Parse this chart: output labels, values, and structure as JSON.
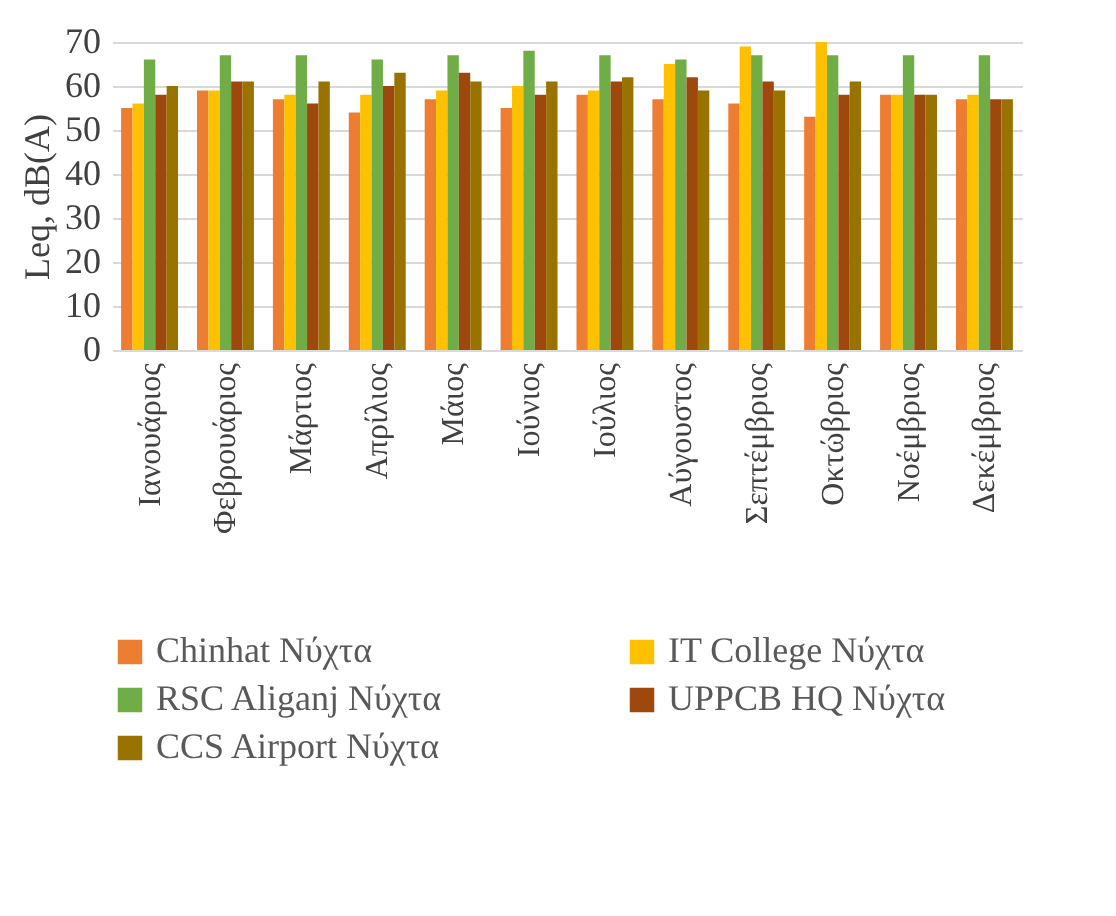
{
  "chart_data": {
    "type": "bar",
    "ylabel": "Leq, dB(A)",
    "categories": [
      "Ιανουάριος",
      "Φεβρουάριος",
      "Μάρτιος",
      "Απρίλιος",
      "Μάιος",
      "Ιούνιος",
      "Ιούλιος",
      "Αύγουστος",
      "Σεπτέμβριος",
      "Οκτώβριος",
      "Νοέμβριος",
      "Δεκέμβριος"
    ],
    "series": [
      {
        "name": "Chinhat Νύχτα",
        "color": "#ed7d31",
        "values": [
          55,
          59,
          57,
          54,
          57,
          55,
          58,
          57,
          56,
          53,
          58,
          57
        ]
      },
      {
        "name": "IT College Νύχτα",
        "color": "#ffc000",
        "values": [
          56,
          59,
          58,
          58,
          59,
          60,
          59,
          65,
          69,
          70,
          58,
          58
        ]
      },
      {
        "name": "RSC Aliganj Νύχτα",
        "color": "#70ad47",
        "values": [
          66,
          67,
          67,
          66,
          67,
          68,
          67,
          66,
          67,
          67,
          67,
          67
        ]
      },
      {
        "name": "UPPCB HQ Νύχτα",
        "color": "#9e480e",
        "values": [
          58,
          61,
          56,
          60,
          63,
          58,
          61,
          62,
          61,
          58,
          58,
          57
        ]
      },
      {
        "name": "CCS Airport Νύχτα",
        "color": "#997300",
        "values": [
          60,
          61,
          61,
          63,
          61,
          61,
          62,
          59,
          59,
          61,
          58,
          57
        ]
      }
    ],
    "ylim": [
      0,
      70
    ],
    "yticks": [
      0,
      10,
      20,
      30,
      40,
      50,
      60,
      70
    ],
    "grid": "y",
    "legend": "bottom"
  }
}
